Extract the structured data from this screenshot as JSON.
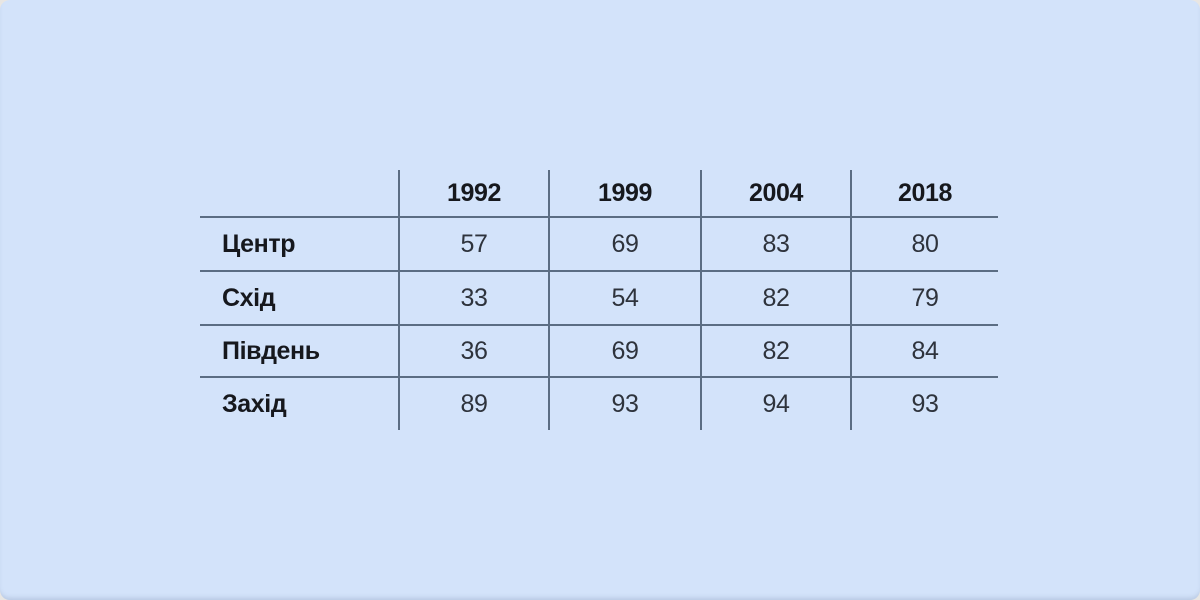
{
  "chart_data": {
    "type": "table",
    "categories": [
      "1992",
      "1999",
      "2004",
      "2018"
    ],
    "series": [
      {
        "name": "Центр",
        "values": [
          57,
          69,
          83,
          80
        ]
      },
      {
        "name": "Схід",
        "values": [
          33,
          54,
          82,
          79
        ]
      },
      {
        "name": "Південь",
        "values": [
          36,
          69,
          82,
          84
        ]
      },
      {
        "name": "Захід",
        "values": [
          89,
          93,
          94,
          93
        ]
      }
    ],
    "title": "",
    "legend": "none",
    "grid": "horizontal-and-vertical-rules"
  },
  "table": {
    "columns": [
      "1992",
      "1999",
      "2004",
      "2018"
    ],
    "rows": [
      {
        "label": "Центр",
        "values": [
          "57",
          "69",
          "83",
          "80"
        ]
      },
      {
        "label": "Схід",
        "values": [
          "33",
          "54",
          "82",
          "79"
        ]
      },
      {
        "label": "Південь",
        "values": [
          "36",
          "69",
          "82",
          "84"
        ]
      },
      {
        "label": "Захід",
        "values": [
          "89",
          "93",
          "94",
          "93"
        ]
      }
    ]
  },
  "colors": {
    "card_background": "#d3e3fa",
    "rule_line": "#5b6d83",
    "header_text": "#16181d",
    "value_text": "#2e333c",
    "page_background": "#e8e6e3"
  }
}
